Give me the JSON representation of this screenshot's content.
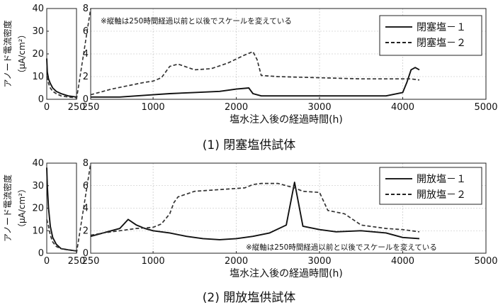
{
  "chart_data": [
    {
      "type": "line",
      "caption": "(1) 閉塞塩供試体",
      "ylabel": "アノード電流密度",
      "ylabel_unit": "（μA/cm²）",
      "xlabel": "塩水注入後の経過時間(h)",
      "note": "※縦軸は250時間経過以前と以後でスケールを変えている",
      "grid": true,
      "legend_position": "top-right",
      "early_panel": {
        "xlim": [
          0,
          250
        ],
        "ylim": [
          0,
          40
        ],
        "xticks": [
          "0",
          "250"
        ],
        "yticks": [
          "0",
          "10",
          "20",
          "30",
          "40"
        ]
      },
      "late_panel": {
        "xlim": [
          250,
          5000
        ],
        "ylim": [
          0,
          8
        ],
        "xticks": [
          "250",
          "1000",
          "2000",
          "3000",
          "4000",
          "5000"
        ],
        "yticks": [
          "0",
          "2",
          "4",
          "6",
          "8"
        ]
      },
      "series": [
        {
          "name": "閉塞塩－１",
          "style": "solid",
          "early_x": [
            0,
            5,
            15,
            30,
            50,
            80,
            120,
            180,
            250
          ],
          "early_y": [
            18,
            12,
            9,
            7,
            5,
            3.5,
            2.5,
            1.5,
            1
          ],
          "late_x": [
            250,
            400,
            600,
            800,
            1000,
            1200,
            1500,
            1800,
            2000,
            2150,
            2200,
            2300,
            2600,
            3000,
            3500,
            3800,
            4000,
            4050,
            4100,
            4150,
            4200
          ],
          "late_y": [
            0.2,
            0.2,
            0.2,
            0.3,
            0.4,
            0.5,
            0.6,
            0.7,
            0.9,
            1.0,
            0.5,
            0.3,
            0.3,
            0.3,
            0.3,
            0.3,
            0.6,
            1.5,
            2.6,
            2.8,
            2.6
          ]
        },
        {
          "name": "閉塞塩－２",
          "style": "dashed",
          "early_x": [
            0,
            5,
            15,
            30,
            50,
            80,
            120,
            180,
            250
          ],
          "early_y": [
            10,
            9,
            7,
            5,
            3.5,
            2.5,
            1.5,
            1,
            0.7
          ],
          "late_x": [
            250,
            350,
            500,
            700,
            900,
            1000,
            1100,
            1200,
            1300,
            1500,
            1700,
            1900,
            2100,
            2200,
            2250,
            2300,
            2500,
            3000,
            3500,
            4000,
            4100,
            4200
          ],
          "late_y": [
            0.4,
            0.6,
            0.9,
            1.2,
            1.5,
            1.6,
            1.9,
            2.9,
            3.1,
            2.6,
            2.7,
            3.2,
            3.9,
            4.2,
            3.5,
            2.1,
            2.0,
            1.9,
            1.8,
            1.8,
            1.8,
            1.7
          ]
        }
      ]
    },
    {
      "type": "line",
      "caption": "(2) 開放塩供試体",
      "ylabel": "アノード電流密度",
      "ylabel_unit": "（μA/cm²）",
      "xlabel": "塩水注入後の経過時間(h)",
      "note": "※縦軸は250時間経過以前と以後でスケールを変えている",
      "grid": true,
      "legend_position": "top-right",
      "early_panel": {
        "xlim": [
          0,
          250
        ],
        "ylim": [
          0,
          40
        ],
        "xticks": [
          "0",
          "250"
        ],
        "yticks": [
          "0",
          "10",
          "20",
          "30",
          "40"
        ]
      },
      "late_panel": {
        "xlim": [
          250,
          5000
        ],
        "ylim": [
          0,
          8
        ],
        "xticks": [
          "250",
          "1000",
          "2000",
          "3000",
          "4000",
          "5000"
        ],
        "yticks": [
          "0",
          "2",
          "4",
          "6",
          "8"
        ]
      },
      "series": [
        {
          "name": "開放塩－１",
          "style": "solid",
          "early_x": [
            0,
            5,
            15,
            30,
            50,
            80,
            120,
            180,
            250
          ],
          "early_y": [
            38,
            30,
            20,
            12,
            7,
            4,
            2,
            1.5,
            1
          ],
          "late_x": [
            250,
            400,
            600,
            700,
            800,
            900,
            1000,
            1200,
            1400,
            1600,
            1800,
            2000,
            2200,
            2400,
            2600,
            2700,
            2800,
            3000,
            3200,
            3500,
            3800,
            4000,
            4200
          ],
          "late_y": [
            1.5,
            1.8,
            2.2,
            3.0,
            2.5,
            2.2,
            2.0,
            1.8,
            1.5,
            1.3,
            1.2,
            1.3,
            1.5,
            1.8,
            2.5,
            6.3,
            2.4,
            2.1,
            1.9,
            2.0,
            1.8,
            1.4,
            1.3
          ]
        },
        {
          "name": "開放塩－２",
          "style": "dashed",
          "early_x": [
            0,
            5,
            15,
            30,
            50,
            80,
            120,
            180,
            250
          ],
          "early_y": [
            15,
            14,
            12,
            8,
            5,
            3,
            2,
            1.5,
            1
          ],
          "late_x": [
            250,
            400,
            600,
            800,
            1000,
            1100,
            1200,
            1250,
            1300,
            1500,
            1700,
            1900,
            2100,
            2200,
            2300,
            2500,
            2700,
            2800,
            3000,
            3100,
            3300,
            3500,
            3800,
            4000,
            4200
          ],
          "late_y": [
            1.6,
            1.8,
            2.0,
            2.2,
            2.3,
            2.6,
            3.5,
            4.5,
            5.0,
            5.5,
            5.6,
            5.7,
            5.8,
            6.1,
            6.2,
            6.2,
            5.8,
            5.5,
            5.4,
            3.8,
            3.5,
            2.5,
            2.2,
            2.1,
            1.9
          ]
        }
      ]
    }
  ]
}
